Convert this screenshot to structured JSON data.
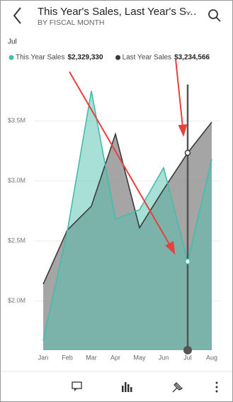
{
  "header": {
    "title": "This Year's Sales, Last Year's S…",
    "subtitle": "BY FISCAL MONTH"
  },
  "chart_data": {
    "type": "area",
    "categories": [
      "Jan",
      "Feb",
      "Mar",
      "Apr",
      "May",
      "Jun",
      "Jul",
      "Aug"
    ],
    "series": [
      {
        "name": "Last Year Sales",
        "color": "#3a3a3a",
        "fill": "#8f8f8f",
        "values": [
          2140000,
          2590000,
          2790000,
          3390000,
          2610000,
          2930000,
          3234566,
          3490000
        ],
        "value_labels": [
          null,
          null,
          null,
          null,
          null,
          null,
          "$3,234,566",
          null
        ]
      },
      {
        "name": "This Year Sales",
        "color": "#45bba9",
        "fill": "#52c2b0",
        "values": [
          1670000,
          2580000,
          3750000,
          2680000,
          2760000,
          3110000,
          2329330,
          3180000
        ],
        "value_labels": [
          null,
          null,
          null,
          null,
          null,
          null,
          "$2,329,330",
          null
        ]
      }
    ],
    "ylim": [
      1590000,
      3910000
    ],
    "yticks": [
      {
        "value": 2000000,
        "label": "$2.0M"
      },
      {
        "value": 2500000,
        "label": "$2.5M"
      },
      {
        "value": 3000000,
        "label": "$3.0M"
      },
      {
        "value": 3500000,
        "label": "$3.5M"
      }
    ],
    "grid": true,
    "selected": 6
  }
}
